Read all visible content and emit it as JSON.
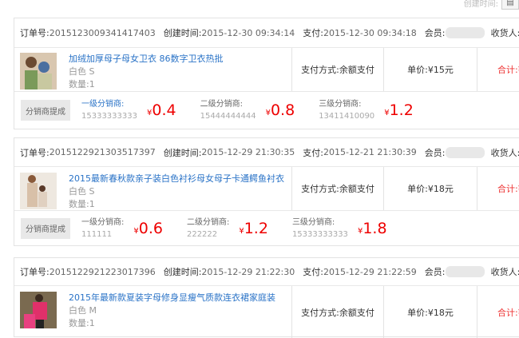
{
  "top": {
    "label": "创建时间:",
    "calendar_icon": "calendar-icon"
  },
  "labels": {
    "order_no": "订单号:",
    "created": "创建时间:",
    "paid": "支付:",
    "member": "会员:",
    "receiver": "收货人:",
    "qty_prefix": "数量:",
    "pay_method": "支付方式:余额支付",
    "total": "合计:¥",
    "dist_button": "分销商提成",
    "lvl1": "一级分销商:",
    "lvl2": "二级分销商:",
    "lvl3": "三级分销商:",
    "currency": "¥"
  },
  "orders": [
    {
      "order_no": "2015123009341417403",
      "created": "2015-12-30 09:34:14",
      "paid": "2015-12-30 09:34:18",
      "product": "加绒加厚母子母女卫衣 86数字卫衣热批",
      "spec": "白色 S",
      "qty": "数量:1",
      "unit_price": "单价:¥15元",
      "dist": [
        {
          "phone": "15333333333",
          "amount": "0.4"
        },
        {
          "phone": "15444444444",
          "amount": "0.8"
        },
        {
          "phone": "13411410090",
          "amount": "1.2"
        }
      ]
    },
    {
      "order_no": "2015122921303517397",
      "created": "2015-12-29 21:30:35",
      "paid": "2015-12-21 21:30:39",
      "product": "2015最新春秋款亲子装白色衬衫母女母子卡通鳄鱼衬衣",
      "spec": "白色 S",
      "qty": "数量:1",
      "unit_price": "单价:¥18元",
      "dist": [
        {
          "phone": "111111",
          "amount": "0.6"
        },
        {
          "phone": "222222",
          "amount": "1.2"
        },
        {
          "phone": "15333333333",
          "amount": "1.8"
        }
      ]
    },
    {
      "order_no": "2015122921223017396",
      "created": "2015-12-29 21:22:30",
      "paid": "2015-12-29 21:22:59",
      "product": "2015年最新款夏装字母修身显瘦气质款连衣裙家庭装",
      "spec": "白色 M",
      "qty": "数量:1",
      "unit_price": "单价:¥18元"
    }
  ]
}
